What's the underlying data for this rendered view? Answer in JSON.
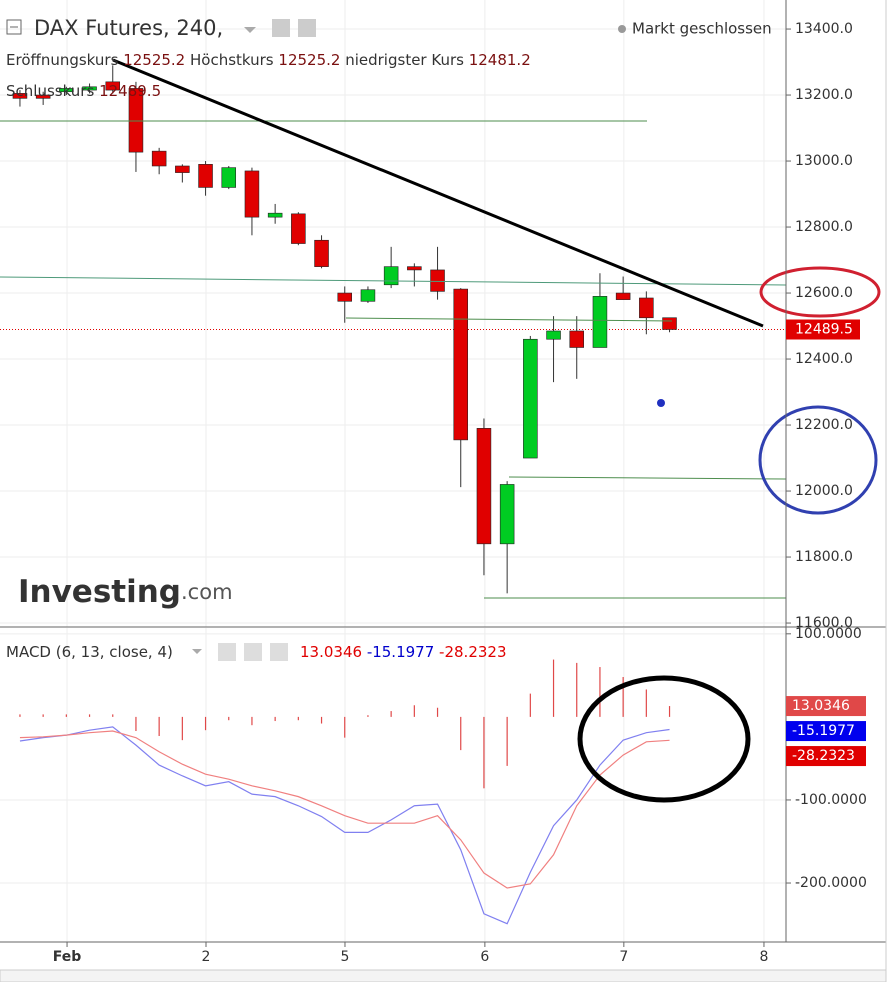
{
  "header": {
    "title": "DAX Futures, 240,",
    "status": "Markt geschlossen",
    "logo": "Investing",
    "logo_suffix": ".com"
  },
  "chart_data": [
    {
      "type": "candlestick",
      "labels": {
        "open": "Eröffnungskurs",
        "high": "Höchstkurs",
        "low": "niedrigster Kurs",
        "close": "Schlusskurs"
      },
      "categories": [
        null,
        null,
        null,
        null,
        null,
        null,
        null,
        null,
        null,
        null,
        null,
        null,
        null,
        null,
        null,
        null,
        null,
        null,
        null,
        null,
        null,
        null,
        null,
        null,
        null,
        null,
        null,
        null,
        null
      ],
      "open": [
        13205,
        13200,
        13210,
        13215,
        13240,
        13220,
        13030,
        12985,
        12990,
        12920,
        12970,
        12830,
        12840,
        12760,
        12600,
        12575,
        12625,
        12680,
        12670,
        12612,
        12190,
        11840,
        12100,
        12460,
        12485,
        12435,
        12600,
        12585,
        12525.2
      ],
      "high": [
        13215,
        13210,
        13225,
        13235,
        13290,
        13240,
        13040,
        12990,
        13000,
        12985,
        12980,
        12870,
        12845,
        12775,
        12620,
        12620,
        12740,
        12690,
        12740,
        12615,
        12220,
        12030,
        12470,
        12530,
        12530,
        12660,
        12650,
        12605,
        12525.2
      ],
      "low": [
        13165,
        13170,
        13200,
        13205,
        13205,
        12967,
        12960,
        12935,
        12895,
        12915,
        12775,
        12810,
        12745,
        12675,
        12510,
        12570,
        12615,
        12620,
        12580,
        12012,
        11745,
        11690,
        12100,
        12330,
        12340,
        12435,
        12580,
        12475,
        12481.2
      ],
      "close": [
        13190,
        13190,
        13220,
        13225,
        13215,
        13027,
        12985,
        12965,
        12920,
        12980,
        12830,
        12842,
        12750,
        12680,
        12575,
        12610,
        12680,
        12670,
        12605,
        12155,
        11840,
        12020,
        12460,
        12485,
        12435,
        12590,
        12580,
        12525,
        12489.5
      ],
      "colors": {
        "up": "#00cc22",
        "down": "#e00000"
      },
      "xlim": [
        -0.86,
        33.02
      ],
      "xticks": [
        {
          "value": 2.03,
          "label": "Feb"
        },
        {
          "value": 8.02,
          "label": "2"
        },
        {
          "value": 14.01,
          "label": "5"
        },
        {
          "value": 20.04,
          "label": "6"
        },
        {
          "value": 26.03,
          "label": "7"
        },
        {
          "value": 32.07,
          "label": "8"
        }
      ],
      "ylim": [
        11588,
        13488
      ],
      "yticks": [
        {
          "value": 11600,
          "label": "11600.0"
        },
        {
          "value": 11800,
          "label": "11800.0"
        },
        {
          "value": 12000,
          "label": "12000.0"
        },
        {
          "value": 12200,
          "label": "12200.0"
        },
        {
          "value": 12400,
          "label": "12400.0"
        },
        {
          "value": 12600,
          "label": "12600.0"
        },
        {
          "value": 12800,
          "label": "12800.0"
        },
        {
          "value": 13000,
          "label": "13000.0"
        },
        {
          "value": 13200,
          "label": "13200.0"
        },
        {
          "value": 13400,
          "label": "13400.0"
        }
      ],
      "grid": true
    },
    {
      "type": "macd",
      "title": "MACD (6, 13, close, 4)",
      "series": [
        {
          "kind": "histogram",
          "color": "#e04848",
          "values": [
            3,
            3,
            3,
            3,
            3,
            -17,
            -23,
            -28,
            -16,
            -4,
            -10,
            -5,
            -4,
            -8,
            -25,
            2,
            7,
            14,
            11,
            -40,
            -86,
            -59,
            28,
            69,
            65,
            60,
            48,
            33,
            13.0346
          ]
        },
        {
          "kind": "line",
          "color": "#0000ee",
          "line_color": "#8080f0",
          "values": [
            -29,
            -25,
            -22,
            -16,
            -12,
            -34,
            -58,
            -71,
            -83,
            -78,
            -93,
            -96,
            -107,
            -120,
            -139,
            -139,
            -124,
            -107,
            -105,
            -160,
            -237,
            -249,
            -187,
            -131,
            -100,
            -58,
            -28,
            -19,
            -15.1977
          ]
        },
        {
          "kind": "line",
          "color": "#e00000",
          "line_color": "#f08080",
          "values": [
            -25,
            -24,
            -22,
            -19,
            -17,
            -25,
            -42,
            -57,
            -69,
            -75,
            -83,
            -89,
            -96,
            -107,
            -119,
            -128,
            -128,
            -128,
            -119,
            -148,
            -188,
            -206,
            -201,
            -166,
            -107,
            -70,
            -46,
            -30,
            -28.2323
          ]
        }
      ],
      "ylim": [
        -271,
        107
      ],
      "yticks": [
        {
          "value": -200,
          "label": "-200.0000"
        },
        {
          "value": -100,
          "label": "-100.0000"
        },
        {
          "value": 100,
          "label": "100.0000"
        }
      ],
      "grid": true
    }
  ]
}
